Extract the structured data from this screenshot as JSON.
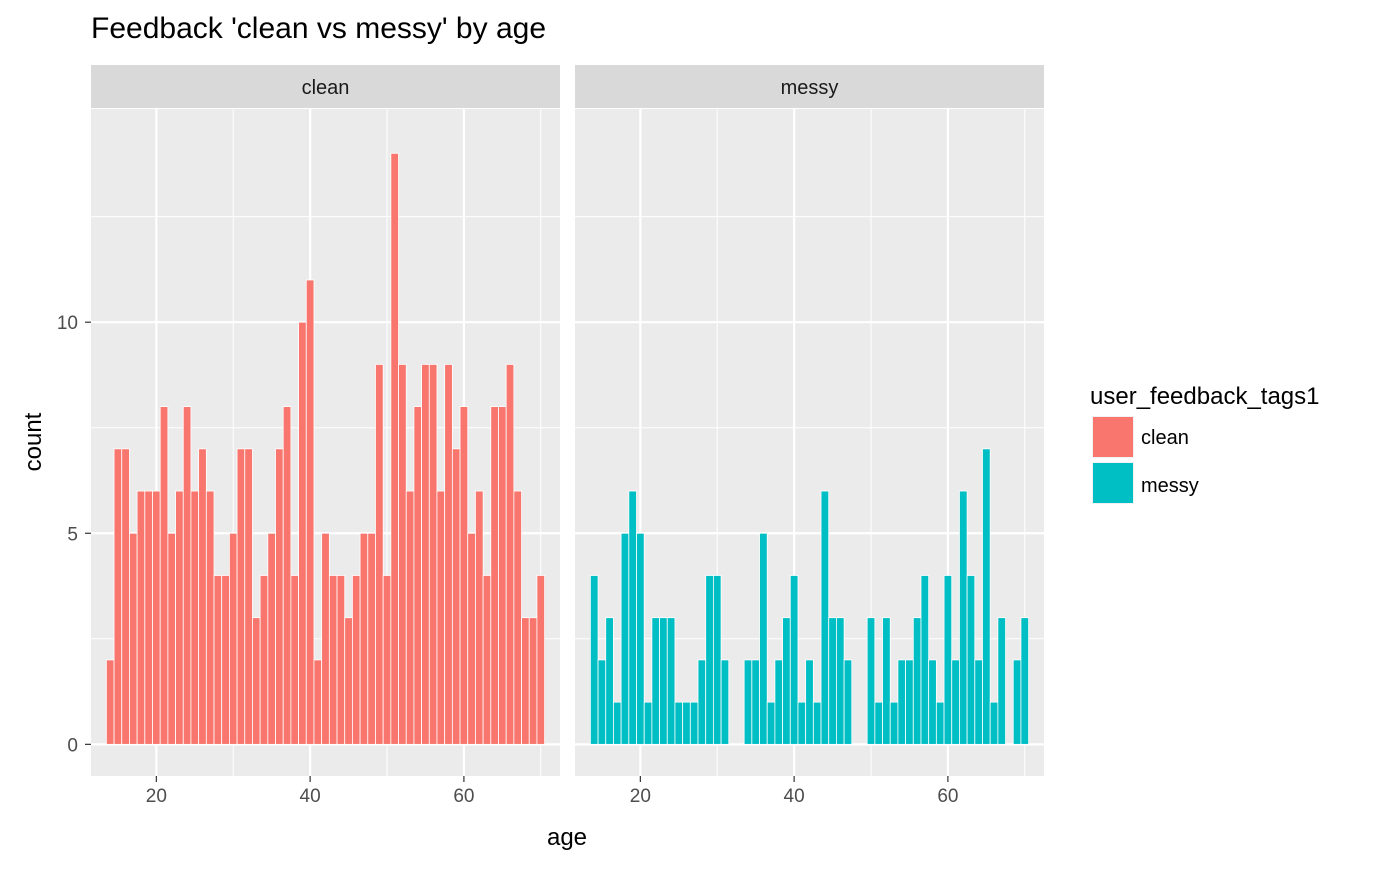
{
  "chart_data": {
    "type": "bar",
    "title": "Feedback 'clean vs messy' by age",
    "xlabel": "age",
    "ylabel": "count",
    "xlim": [
      11.5,
      72.5
    ],
    "ylim": [
      -0.75,
      15.05
    ],
    "x_ticks": [
      20,
      40,
      60
    ],
    "y_ticks": [
      0,
      5,
      10
    ],
    "grid": true,
    "legend": {
      "title": "user_feedback_tags1",
      "position": "right",
      "entries": [
        {
          "label": "clean",
          "color": "#F8766D"
        },
        {
          "label": "messy",
          "color": "#00BFC4"
        }
      ]
    },
    "panels": [
      {
        "label": "clean",
        "color": "#F8766D",
        "x": [
          14,
          15,
          16,
          17,
          18,
          19,
          20,
          21,
          22,
          23,
          24,
          25,
          26,
          27,
          28,
          29,
          30,
          31,
          32,
          33,
          34,
          35,
          36,
          37,
          38,
          39,
          40,
          41,
          42,
          43,
          44,
          45,
          46,
          47,
          48,
          49,
          50,
          51,
          52,
          53,
          54,
          55,
          56,
          57,
          58,
          59,
          60,
          61,
          62,
          63,
          64,
          65,
          66,
          67,
          68,
          69,
          70
        ],
        "values": [
          2,
          7,
          7,
          5,
          6,
          6,
          6,
          8,
          5,
          6,
          8,
          6,
          7,
          6,
          4,
          4,
          5,
          7,
          7,
          3,
          4,
          5,
          7,
          8,
          4,
          10,
          11,
          2,
          5,
          4,
          4,
          3,
          4,
          5,
          5,
          9,
          4,
          14,
          9,
          6,
          8,
          9,
          9,
          6,
          9,
          7,
          8,
          5,
          6,
          4,
          8,
          8,
          9,
          6,
          3,
          3,
          4
        ]
      },
      {
        "label": "messy",
        "color": "#00BFC4",
        "x": [
          14,
          15,
          16,
          17,
          18,
          19,
          20,
          21,
          22,
          23,
          24,
          25,
          26,
          27,
          28,
          29,
          30,
          31,
          32,
          33,
          34,
          35,
          36,
          37,
          38,
          39,
          40,
          41,
          42,
          43,
          44,
          45,
          46,
          47,
          48,
          49,
          50,
          51,
          52,
          53,
          54,
          55,
          56,
          57,
          58,
          59,
          60,
          61,
          62,
          63,
          64,
          65,
          66,
          67,
          68,
          69,
          70
        ],
        "values": [
          4,
          2,
          3,
          1,
          5,
          6,
          5,
          1,
          3,
          3,
          3,
          1,
          1,
          1,
          2,
          4,
          4,
          2,
          0,
          0,
          2,
          2,
          5,
          1,
          2,
          3,
          4,
          1,
          2,
          1,
          6,
          3,
          3,
          2,
          0,
          0,
          3,
          1,
          3,
          1,
          2,
          2,
          3,
          4,
          2,
          1,
          4,
          2,
          6,
          4,
          2,
          7,
          1,
          3,
          0,
          2,
          3
        ]
      }
    ]
  }
}
